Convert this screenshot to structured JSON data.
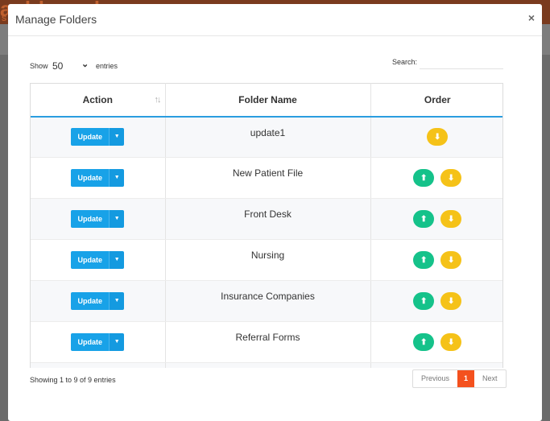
{
  "background": {
    "title": "ashboard",
    "subtitle": "S"
  },
  "modal": {
    "title": "Manage Folders",
    "close": "×"
  },
  "controls": {
    "show_label": "Show",
    "show_value": "50",
    "entries_label": "entries",
    "search_label": "Search:",
    "search_value": ""
  },
  "table": {
    "columns": [
      "Action",
      "Folder Name",
      "Order"
    ],
    "sort_indicator": "↑↓",
    "update_label": "Update",
    "caret": "▼",
    "up_arrow": "⬆",
    "down_arrow": "⬇",
    "rows": [
      {
        "name": "update1",
        "has_up": false,
        "has_down": true
      },
      {
        "name": "New Patient File",
        "has_up": true,
        "has_down": true
      },
      {
        "name": "Front Desk",
        "has_up": true,
        "has_down": true
      },
      {
        "name": "Nursing",
        "has_up": true,
        "has_down": true
      },
      {
        "name": "Insurance Companies",
        "has_up": true,
        "has_down": true
      },
      {
        "name": "Referral Forms",
        "has_up": true,
        "has_down": true
      }
    ]
  },
  "footer": {
    "info": "Showing 1 to 9 of 9 entries",
    "prev": "Previous",
    "page": "1",
    "next": "Next"
  },
  "colors": {
    "accent": "#18a2e8",
    "up": "#15c28a",
    "down": "#f5c218",
    "active_page": "#f4511e"
  }
}
